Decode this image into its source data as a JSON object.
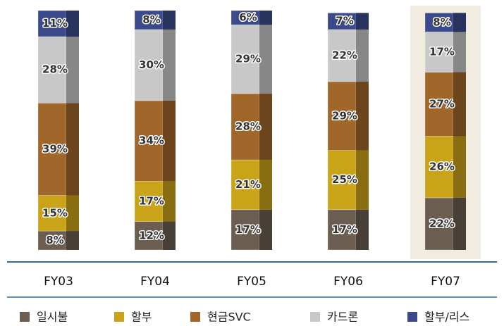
{
  "chart_data": {
    "type": "stacked_bar",
    "categories": [
      "FY03",
      "FY04",
      "FY05",
      "FY06",
      "FY07"
    ],
    "series": [
      {
        "name": "일시불",
        "color": "#6b5e50",
        "values": [
          8,
          12,
          17,
          17,
          22
        ],
        "value_labels": [
          "8%",
          "12%",
          "17%",
          "17%",
          "22%"
        ]
      },
      {
        "name": "할부",
        "color": "#c9a318",
        "values": [
          15,
          17,
          21,
          25,
          26
        ],
        "value_labels": [
          "15%",
          "17%",
          "21%",
          "25%",
          "26%"
        ]
      },
      {
        "name": "현금SVC",
        "color": "#a0662a",
        "values": [
          39,
          34,
          28,
          29,
          27
        ],
        "value_labels": [
          "39%",
          "34%",
          "28%",
          "29%",
          "27%"
        ]
      },
      {
        "name": "카드론",
        "color": "#c8c8c8",
        "values": [
          28,
          30,
          29,
          22,
          17
        ],
        "value_labels": [
          "28%",
          "30%",
          "29%",
          "22%",
          "17%"
        ]
      },
      {
        "name": "할부/리스",
        "color": "#3a4a8a",
        "values": [
          11,
          8,
          6,
          7,
          8
        ],
        "value_labels": [
          "11%",
          "8%",
          "6%",
          "7%",
          "8%"
        ]
      }
    ],
    "ylim": [
      0,
      101
    ]
  }
}
